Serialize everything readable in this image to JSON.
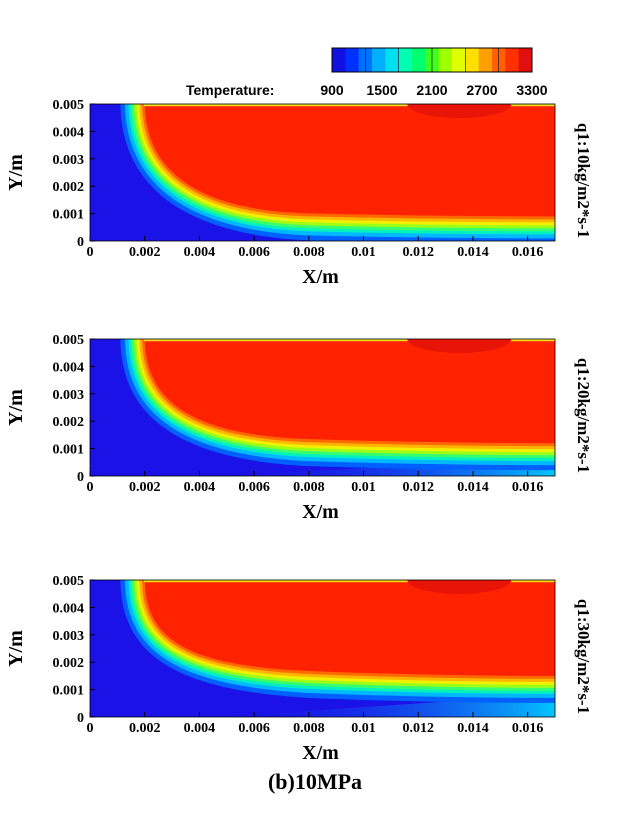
{
  "figure_caption": "(b)10MPa",
  "colorbar": {
    "label": "Temperature:",
    "ticks": [
      "900",
      "1500",
      "2100",
      "2700",
      "3300"
    ],
    "min": 900,
    "max": 3300,
    "colors": [
      "#1010e0",
      "#0030ff",
      "#0070ff",
      "#00b0ff",
      "#00e0f0",
      "#00ffb0",
      "#00ff70",
      "#40ff20",
      "#a0ff00",
      "#e0ff00",
      "#ffe000",
      "#ffa000",
      "#ff6000",
      "#ff3000",
      "#e01010"
    ]
  },
  "chart_data": [
    {
      "type": "contour",
      "title_side": "q1:10kg/m2*s-1",
      "xlabel": "X/m",
      "ylabel": "Y/m",
      "xlim": [
        0,
        0.017
      ],
      "ylim": [
        0,
        0.005
      ],
      "xticks": [
        "0",
        "0.002",
        "0.004",
        "0.006",
        "0.008",
        "0.01",
        "0.012",
        "0.014",
        "0.016"
      ],
      "yticks": [
        "0",
        "0.001",
        "0.002",
        "0.003",
        "0.004",
        "0.005"
      ],
      "flame_front": {
        "x_start": 0.002,
        "y_bottom_at_end": 0.0009
      },
      "hot_spot_center": [
        0.0135,
        0.005
      ]
    },
    {
      "type": "contour",
      "title_side": "q1:20kg/m2*s-1",
      "xlabel": "X/m",
      "ylabel": "Y/m",
      "xlim": [
        0,
        0.017
      ],
      "ylim": [
        0,
        0.005
      ],
      "xticks": [
        "0",
        "0.002",
        "0.004",
        "0.006",
        "0.008",
        "0.01",
        "0.012",
        "0.014",
        "0.016"
      ],
      "yticks": [
        "0",
        "0.001",
        "0.002",
        "0.003",
        "0.004",
        "0.005"
      ],
      "flame_front": {
        "x_start": 0.002,
        "y_bottom_at_end": 0.0012
      },
      "hot_spot_center": [
        0.0135,
        0.005
      ]
    },
    {
      "type": "contour",
      "title_side": "q1:30kg/m2*s-1",
      "xlabel": "X/m",
      "ylabel": "Y/m",
      "xlim": [
        0,
        0.017
      ],
      "ylim": [
        0,
        0.005
      ],
      "xticks": [
        "0",
        "0.002",
        "0.004",
        "0.006",
        "0.008",
        "0.01",
        "0.012",
        "0.014",
        "0.016"
      ],
      "yticks": [
        "0",
        "0.001",
        "0.002",
        "0.003",
        "0.004",
        "0.005"
      ],
      "flame_front": {
        "x_start": 0.002,
        "y_bottom_at_end": 0.0015
      },
      "hot_spot_center": [
        0.0135,
        0.005
      ]
    }
  ]
}
